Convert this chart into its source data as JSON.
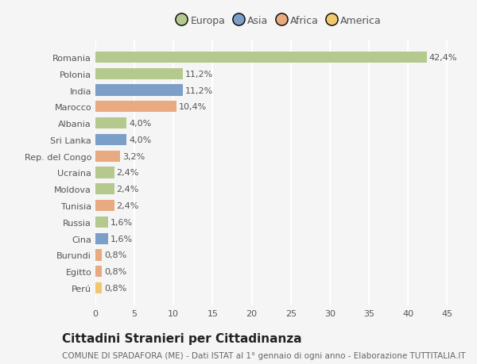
{
  "categories": [
    "Romania",
    "Polonia",
    "India",
    "Marocco",
    "Albania",
    "Sri Lanka",
    "Rep. del Congo",
    "Ucraina",
    "Moldova",
    "Tunisia",
    "Russia",
    "Cina",
    "Burundi",
    "Egitto",
    "Perú"
  ],
  "values": [
    42.4,
    11.2,
    11.2,
    10.4,
    4.0,
    4.0,
    3.2,
    2.4,
    2.4,
    2.4,
    1.6,
    1.6,
    0.8,
    0.8,
    0.8
  ],
  "labels": [
    "42,4%",
    "11,2%",
    "11,2%",
    "10,4%",
    "4,0%",
    "4,0%",
    "3,2%",
    "2,4%",
    "2,4%",
    "2,4%",
    "1,6%",
    "1,6%",
    "0,8%",
    "0,8%",
    "0,8%"
  ],
  "colors": [
    "#b5c98e",
    "#b5c98e",
    "#7b9fc7",
    "#e8aa80",
    "#b5c98e",
    "#7b9fc7",
    "#e8aa80",
    "#b5c98e",
    "#b5c98e",
    "#e8aa80",
    "#b5c98e",
    "#7b9fc7",
    "#e8aa80",
    "#e8aa80",
    "#f0c96e"
  ],
  "continents": [
    "Europa",
    "Europa",
    "Asia",
    "Africa",
    "Europa",
    "Asia",
    "Africa",
    "Europa",
    "Europa",
    "Africa",
    "Europa",
    "Asia",
    "Africa",
    "Africa",
    "America"
  ],
  "legend_labels": [
    "Europa",
    "Asia",
    "Africa",
    "America"
  ],
  "legend_colors": [
    "#b5c98e",
    "#7b9fc7",
    "#e8aa80",
    "#f0c96e"
  ],
  "title": "Cittadini Stranieri per Cittadinanza",
  "subtitle": "COMUNE DI SPADAFORA (ME) - Dati ISTAT al 1° gennaio di ogni anno - Elaborazione TUTTITALIA.IT",
  "xlim": [
    0,
    47
  ],
  "xticks": [
    0,
    5,
    10,
    15,
    20,
    25,
    30,
    35,
    40,
    45
  ],
  "bg_color": "#f5f5f5",
  "grid_color": "#ffffff",
  "bar_height": 0.68,
  "label_fontsize": 8.0,
  "tick_fontsize": 8.0,
  "title_fontsize": 11,
  "subtitle_fontsize": 7.5,
  "show_label_threshold": 4.5
}
